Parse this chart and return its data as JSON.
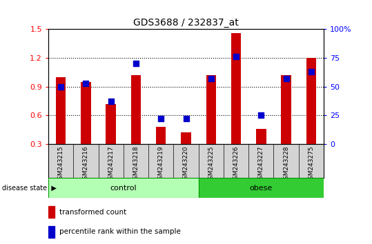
{
  "title": "GDS3688 / 232837_at",
  "samples": [
    "GSM243215",
    "GSM243216",
    "GSM243217",
    "GSM243218",
    "GSM243219",
    "GSM243220",
    "GSM243225",
    "GSM243226",
    "GSM243227",
    "GSM243228",
    "GSM243275"
  ],
  "transformed_count": [
    1.0,
    0.95,
    0.72,
    1.02,
    0.48,
    0.42,
    1.02,
    1.46,
    0.46,
    1.02,
    1.2
  ],
  "percentile_rank_pct": [
    50,
    53,
    37,
    70,
    22,
    22,
    57,
    76,
    25,
    57,
    63
  ],
  "control_count": 6,
  "obese_count": 5,
  "ylim_left": [
    0.3,
    1.5
  ],
  "ylim_right": [
    0,
    100
  ],
  "yticks_left": [
    0.3,
    0.6,
    0.9,
    1.2,
    1.5
  ],
  "yticks_right": [
    0,
    25,
    50,
    75,
    100
  ],
  "bar_color": "#cc0000",
  "dot_color": "#0000cc",
  "bar_width": 0.4,
  "dot_size": 35,
  "plot_bg_color": "#ffffff",
  "xtick_bg_color": "#d4d4d4",
  "control_color_light": "#b3ffb3",
  "control_color": "#b3ffb3",
  "obese_color": "#33cc33",
  "group_border_color": "#009900",
  "legend_items": [
    {
      "label": "transformed count",
      "color": "#cc0000"
    },
    {
      "label": "percentile rank within the sample",
      "color": "#0000cc"
    }
  ]
}
